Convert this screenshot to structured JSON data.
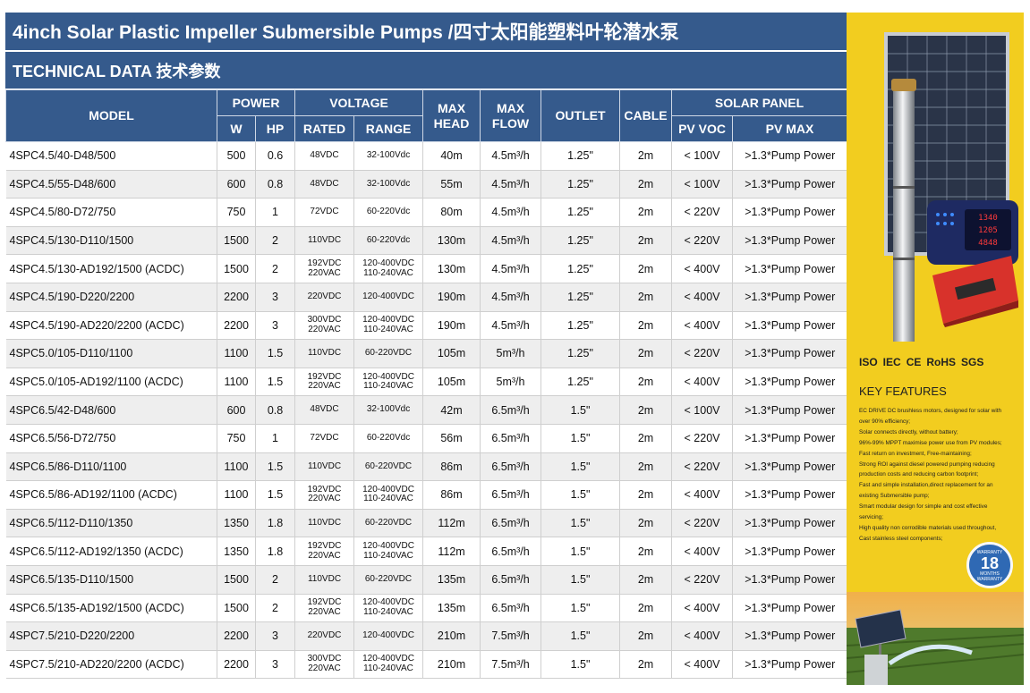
{
  "title": "4inch Solar Plastic Impeller Submersible Pumps /四寸太阳能塑料叶轮潜水泵",
  "subtitle": "TECHNICAL DATA  技术参数",
  "headers": {
    "model": "MODEL",
    "power": "POWER",
    "voltage": "VOLTAGE",
    "max_head": "MAX HEAD",
    "max_flow": "MAX FLOW",
    "outlet": "OUTLET",
    "cable": "CABLE",
    "solar_panel": "SOLAR PANEL",
    "w": "W",
    "hp": "HP",
    "rated": "RATED",
    "range": "RANGE",
    "pv_voc": "PV VOC",
    "pv_max": "PV MAX"
  },
  "rows": [
    {
      "model": "4SPC4.5/40-D48/500",
      "w": "500",
      "hp": "0.6",
      "rated": "48VDC",
      "rated2": "",
      "range": "32-100Vdc",
      "range2": "",
      "head": "40m",
      "flow": "4.5m³/h",
      "outlet": "1.25\"",
      "cable": "2m",
      "voc": "< 100V",
      "pvmax": ">1.3*Pump Power"
    },
    {
      "model": "4SPC4.5/55-D48/600",
      "w": "600",
      "hp": "0.8",
      "rated": "48VDC",
      "rated2": "",
      "range": "32-100Vdc",
      "range2": "",
      "head": "55m",
      "flow": "4.5m³/h",
      "outlet": "1.25\"",
      "cable": "2m",
      "voc": "< 100V",
      "pvmax": ">1.3*Pump Power"
    },
    {
      "model": "4SPC4.5/80-D72/750",
      "w": "750",
      "hp": "1",
      "rated": "72VDC",
      "rated2": "",
      "range": "60-220Vdc",
      "range2": "",
      "head": "80m",
      "flow": "4.5m³/h",
      "outlet": "1.25\"",
      "cable": "2m",
      "voc": "< 220V",
      "pvmax": ">1.3*Pump Power"
    },
    {
      "model": "4SPC4.5/130-D110/1500",
      "w": "1500",
      "hp": "2",
      "rated": "110VDC",
      "rated2": "",
      "range": "60-220Vdc",
      "range2": "",
      "head": "130m",
      "flow": "4.5m³/h",
      "outlet": "1.25\"",
      "cable": "2m",
      "voc": "< 220V",
      "pvmax": ">1.3*Pump Power"
    },
    {
      "model": "4SPC4.5/130-AD192/1500 (ACDC)",
      "w": "1500",
      "hp": "2",
      "rated": "192VDC",
      "rated2": "220VAC",
      "range": "120-400VDC",
      "range2": "110-240VAC",
      "head": "130m",
      "flow": "4.5m³/h",
      "outlet": "1.25\"",
      "cable": "2m",
      "voc": "< 400V",
      "pvmax": ">1.3*Pump Power"
    },
    {
      "model": "4SPC4.5/190-D220/2200",
      "w": "2200",
      "hp": "3",
      "rated": "220VDC",
      "rated2": "",
      "range": "120-400VDC",
      "range2": "",
      "head": "190m",
      "flow": "4.5m³/h",
      "outlet": "1.25\"",
      "cable": "2m",
      "voc": "< 400V",
      "pvmax": ">1.3*Pump Power"
    },
    {
      "model": "4SPC4.5/190-AD220/2200 (ACDC)",
      "w": "2200",
      "hp": "3",
      "rated": "300VDC",
      "rated2": "220VAC",
      "range": "120-400VDC",
      "range2": "110-240VAC",
      "head": "190m",
      "flow": "4.5m³/h",
      "outlet": "1.25\"",
      "cable": "2m",
      "voc": "< 400V",
      "pvmax": ">1.3*Pump Power"
    },
    {
      "model": "4SPC5.0/105-D110/1100",
      "w": "1100",
      "hp": "1.5",
      "rated": "110VDC",
      "rated2": "",
      "range": "60-220VDC",
      "range2": "",
      "head": "105m",
      "flow": "5m³/h",
      "outlet": "1.25\"",
      "cable": "2m",
      "voc": "< 220V",
      "pvmax": ">1.3*Pump Power"
    },
    {
      "model": "4SPC5.0/105-AD192/1100 (ACDC)",
      "w": "1100",
      "hp": "1.5",
      "rated": "192VDC",
      "rated2": "220VAC",
      "range": "120-400VDC",
      "range2": "110-240VAC",
      "head": "105m",
      "flow": "5m³/h",
      "outlet": "1.25\"",
      "cable": "2m",
      "voc": "< 400V",
      "pvmax": ">1.3*Pump Power"
    },
    {
      "model": "4SPC6.5/42-D48/600",
      "w": "600",
      "hp": "0.8",
      "rated": "48VDC",
      "rated2": "",
      "range": "32-100Vdc",
      "range2": "",
      "head": "42m",
      "flow": "6.5m³/h",
      "outlet": "1.5\"",
      "cable": "2m",
      "voc": "< 100V",
      "pvmax": ">1.3*Pump Power"
    },
    {
      "model": "4SPC6.5/56-D72/750",
      "w": "750",
      "hp": "1",
      "rated": "72VDC",
      "rated2": "",
      "range": "60-220Vdc",
      "range2": "",
      "head": "56m",
      "flow": "6.5m³/h",
      "outlet": "1.5\"",
      "cable": "2m",
      "voc": "< 220V",
      "pvmax": ">1.3*Pump Power"
    },
    {
      "model": "4SPC6.5/86-D110/1100",
      "w": "1100",
      "hp": "1.5",
      "rated": "110VDC",
      "rated2": "",
      "range": "60-220VDC",
      "range2": "",
      "head": "86m",
      "flow": "6.5m³/h",
      "outlet": "1.5\"",
      "cable": "2m",
      "voc": "< 220V",
      "pvmax": ">1.3*Pump Power"
    },
    {
      "model": "4SPC6.5/86-AD192/1100 (ACDC)",
      "w": "1100",
      "hp": "1.5",
      "rated": "192VDC",
      "rated2": "220VAC",
      "range": "120-400VDC",
      "range2": "110-240VAC",
      "head": "86m",
      "flow": "6.5m³/h",
      "outlet": "1.5\"",
      "cable": "2m",
      "voc": "< 400V",
      "pvmax": ">1.3*Pump Power"
    },
    {
      "model": "4SPC6.5/112-D110/1350",
      "w": "1350",
      "hp": "1.8",
      "rated": "110VDC",
      "rated2": "",
      "range": "60-220VDC",
      "range2": "",
      "head": "112m",
      "flow": "6.5m³/h",
      "outlet": "1.5\"",
      "cable": "2m",
      "voc": "< 220V",
      "pvmax": ">1.3*Pump Power"
    },
    {
      "model": "4SPC6.5/112-AD192/1350 (ACDC)",
      "w": "1350",
      "hp": "1.8",
      "rated": "192VDC",
      "rated2": "220VAC",
      "range": "120-400VDC",
      "range2": "110-240VAC",
      "head": "112m",
      "flow": "6.5m³/h",
      "outlet": "1.5\"",
      "cable": "2m",
      "voc": "< 400V",
      "pvmax": ">1.3*Pump Power"
    },
    {
      "model": "4SPC6.5/135-D110/1500",
      "w": "1500",
      "hp": "2",
      "rated": "110VDC",
      "rated2": "",
      "range": "60-220VDC",
      "range2": "",
      "head": "135m",
      "flow": "6.5m³/h",
      "outlet": "1.5\"",
      "cable": "2m",
      "voc": "< 220V",
      "pvmax": ">1.3*Pump Power"
    },
    {
      "model": "4SPC6.5/135-AD192/1500 (ACDC)",
      "w": "1500",
      "hp": "2",
      "rated": "192VDC",
      "rated2": "220VAC",
      "range": "120-400VDC",
      "range2": "110-240VAC",
      "head": "135m",
      "flow": "6.5m³/h",
      "outlet": "1.5\"",
      "cable": "2m",
      "voc": "< 400V",
      "pvmax": ">1.3*Pump Power"
    },
    {
      "model": "4SPC7.5/210-D220/2200",
      "w": "2200",
      "hp": "3",
      "rated": "220VDC",
      "rated2": "",
      "range": "120-400VDC",
      "range2": "",
      "head": "210m",
      "flow": "7.5m³/h",
      "outlet": "1.5\"",
      "cable": "2m",
      "voc": "< 400V",
      "pvmax": ">1.3*Pump Power"
    },
    {
      "model": "4SPC7.5/210-AD220/2200 (ACDC)",
      "w": "2200",
      "hp": "3",
      "rated": "300VDC",
      "rated2": "220VAC",
      "range": "120-400VDC",
      "range2": "110-240VAC",
      "head": "210m",
      "flow": "7.5m³/h",
      "outlet": "1.5\"",
      "cable": "2m",
      "voc": "< 400V",
      "pvmax": ">1.3*Pump Power"
    }
  ],
  "sidebar": {
    "certifications": [
      "ISO",
      "IEC",
      "CE",
      "RoHS",
      "SGS"
    ],
    "key_features_title": "KEY FEATURES",
    "features": [
      "EC DRIVE DC brushless motors, designed for solar with",
      "over 90% efficiency;",
      "Solar connects directly, without battery;",
      "96%-99% MPPT maximise power use from PV modules;",
      "Fast return on investment, Free-maintaining;",
      "Strong ROI against diesel powered pumping reducing",
      "production costs and reducing carbon footprint;",
      "Fast and simple installation,direct replacement for an",
      "existing Submersible pump;",
      "Smart modular design for simple and cost effective",
      "servicing;",
      "High quality non corrodible materials used throughout,",
      "Cast stainless steel components;"
    ],
    "warranty": {
      "top": "WARRANTY",
      "number": "18",
      "unit": "MONTHS",
      "bottom": "WARRANTY"
    },
    "display_readings": [
      "1340",
      "1205",
      "4848"
    ]
  },
  "colors": {
    "header_blue": "#355a8c",
    "sidebar_yellow": "#f2cd1f",
    "row_alt": "#eeeeee"
  }
}
